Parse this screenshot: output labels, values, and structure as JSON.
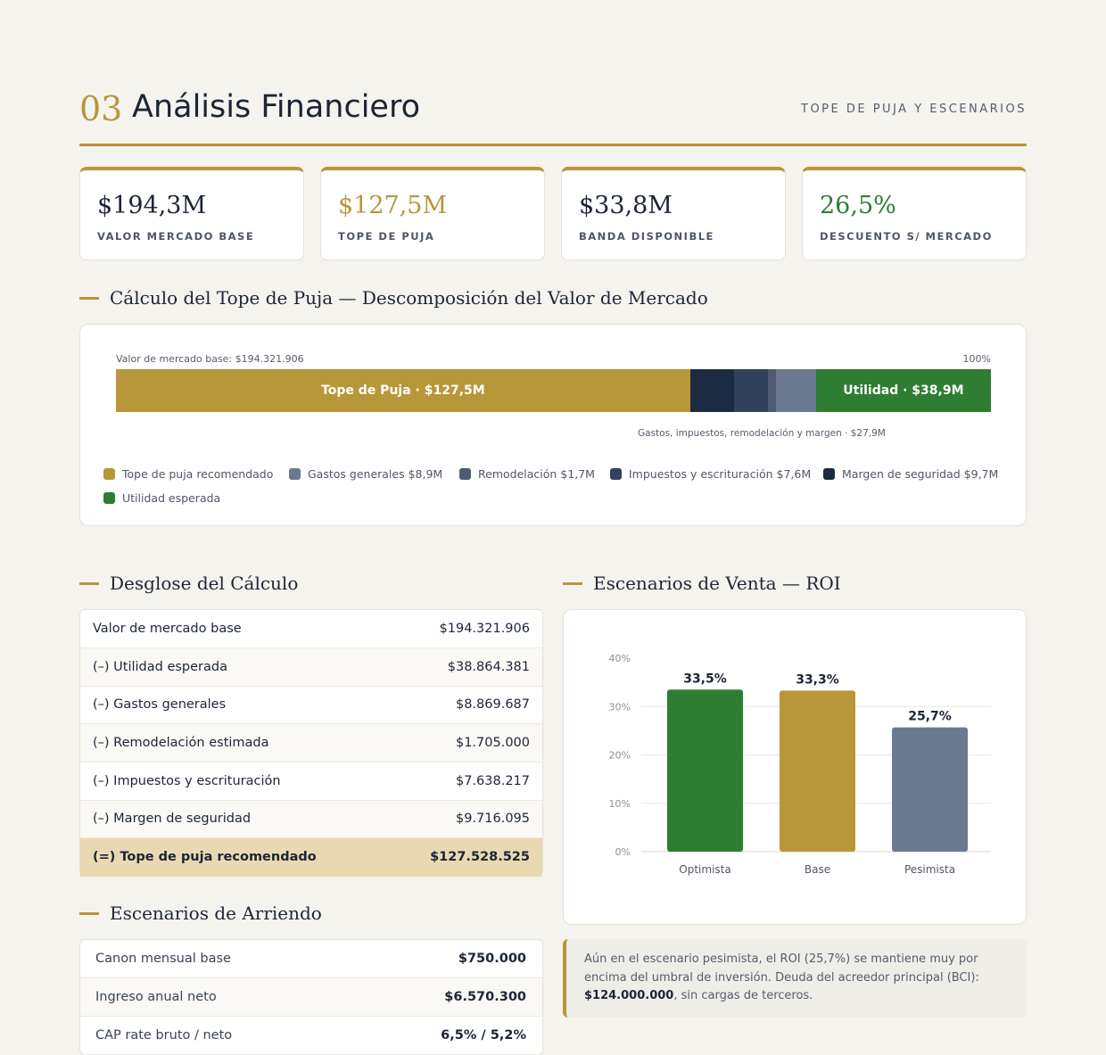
{
  "header": {
    "number": "03",
    "title": "Análisis Financiero",
    "subtitle": "TOPE DE PUJA Y ESCENARIOS"
  },
  "kpis": [
    {
      "value": "$194,3M",
      "label": "VALOR MERCADO BASE",
      "color": "#1c2536"
    },
    {
      "value": "$127,5M",
      "label": "TOPE DE PUJA",
      "color": "#b8963a"
    },
    {
      "value": "$33,8M",
      "label": "BANDA DISPONIBLE",
      "color": "#1c2536"
    },
    {
      "value": "26,5%",
      "label": "DESCUENTO S/ MERCADO",
      "color": "#2f7d32"
    }
  ],
  "breakdown_section": {
    "title": "Cálculo del Tope de Puja — Descomposición del Valor de Mercado",
    "top_left": "Valor de mercado base: $194.321.906",
    "top_right": "100%",
    "bar_label_bid": "Tope de Puja · $127,5M",
    "bar_label_profit": "Utilidad · $38,9M",
    "note": "Gastos, impuestos, remodelación y margen · $27,9M",
    "legend": [
      {
        "label": "Tope de puja recomendado",
        "color": "#b8963a"
      },
      {
        "label": "Gastos generales $8,9M",
        "color": "#6c7a91"
      },
      {
        "label": "Remodelación $1,7M",
        "color": "#4d5b73"
      },
      {
        "label": "Impuestos y escrituración $7,6M",
        "color": "#33425c"
      },
      {
        "label": "Margen de seguridad $9,7M",
        "color": "#1c2a42"
      },
      {
        "label": "Utilidad esperada",
        "color": "#2f7d32"
      }
    ]
  },
  "chart_data": [
    {
      "type": "bar",
      "orientation": "horizontal-stacked",
      "categories": [
        "Tope de puja recomendado",
        "Margen de seguridad",
        "Impuestos y escrituración",
        "Remodelación",
        "Gastos generales",
        "Utilidad esperada"
      ],
      "values": [
        127528525,
        9716095,
        7638217,
        1705000,
        8869687,
        38864381
      ],
      "total": 194321906
    },
    {
      "type": "bar",
      "title": "Escenarios de Venta — ROI",
      "categories": [
        "Optimista",
        "Base",
        "Pesimista"
      ],
      "values": [
        33.5,
        33.3,
        25.7
      ],
      "value_labels": [
        "33,5%",
        "33,3%",
        "25,7%"
      ],
      "colors": [
        "#2f7d32",
        "#b8963a",
        "#6c7a91"
      ],
      "ylim": [
        0,
        40
      ],
      "yticks": [
        0,
        10,
        20,
        30,
        40
      ],
      "ytick_labels": [
        "0%",
        "10%",
        "20%",
        "30%",
        "40%"
      ],
      "grid": true
    }
  ],
  "desglose": {
    "title": "Desglose del Cálculo",
    "rows": [
      {
        "label": "Valor de mercado base",
        "value": "$194.321.906"
      },
      {
        "label": "(–) Utilidad esperada",
        "value": "$38.864.381"
      },
      {
        "label": "(–) Gastos generales",
        "value": "$8.869.687"
      },
      {
        "label": "(–) Remodelación estimada",
        "value": "$1.705.000"
      },
      {
        "label": "(–) Impuestos y escrituración",
        "value": "$7.638.217"
      },
      {
        "label": "(–) Margen de seguridad",
        "value": "$9.716.095"
      }
    ],
    "total": {
      "label": "(=) Tope de puja recomendado",
      "value": "$127.528.525"
    }
  },
  "roi_section": {
    "title": "Escenarios de Venta — ROI"
  },
  "arriendo": {
    "title": "Escenarios de Arriendo",
    "rows": [
      {
        "label": "Canon mensual base",
        "value": "$750.000"
      },
      {
        "label": "Ingreso anual neto",
        "value": "$6.570.300"
      },
      {
        "label": "CAP rate bruto / neto",
        "value": "6,5% / 5,2%"
      }
    ]
  },
  "callout": {
    "text_before": "Aún en el escenario pesimista, el ROI (25,7%) se mantiene muy por encima del umbral de inversión. Deuda del acreedor principal (BCI): ",
    "text_bold": "$124.000.000",
    "text_after": ", sin cargas de terceros."
  }
}
